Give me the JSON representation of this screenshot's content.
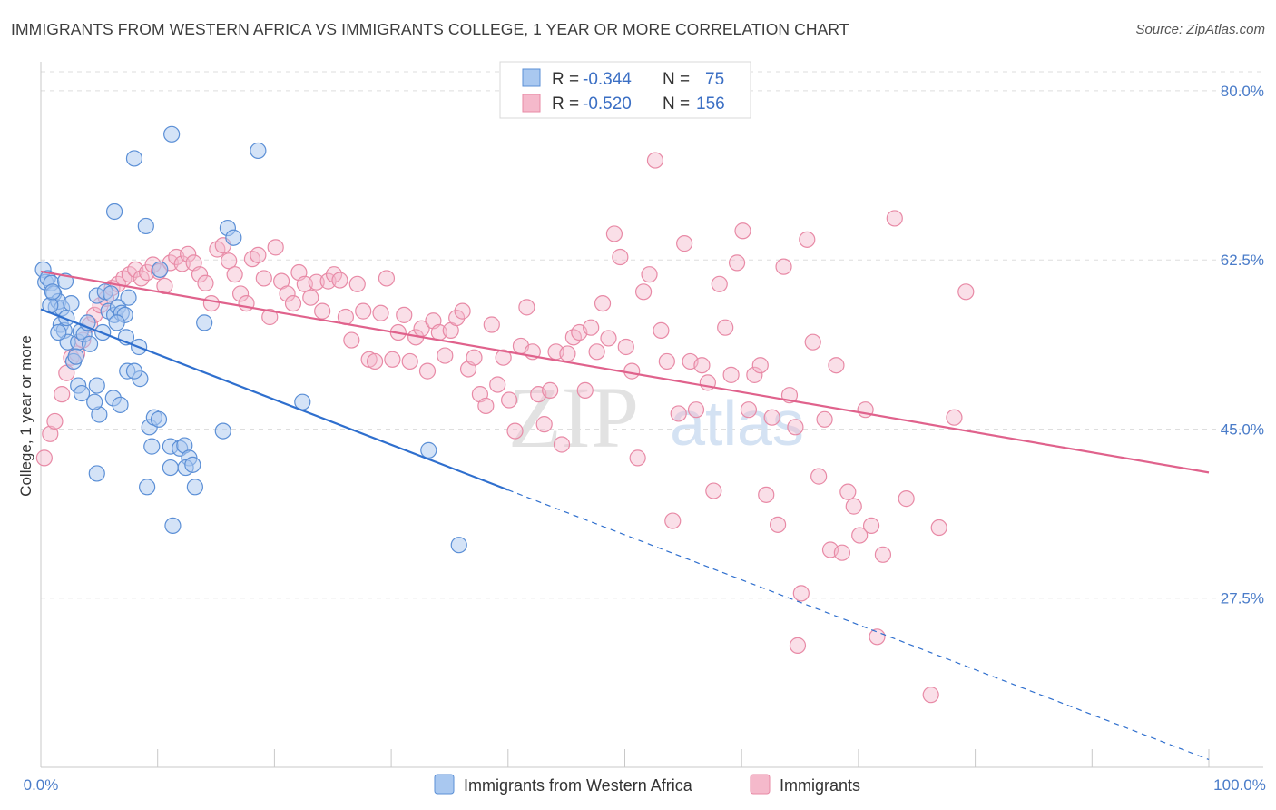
{
  "title": "IMMIGRANTS FROM WESTERN AFRICA VS IMMIGRANTS COLLEGE, 1 YEAR OR MORE CORRELATION CHART",
  "source": "Source: ZipAtlas.com",
  "watermark": {
    "zip": "ZIP",
    "atlas": "atlas"
  },
  "colors": {
    "blue_fill": "#a9c8f0",
    "blue_stroke": "#5b8fd6",
    "blue_line": "#2f6fce",
    "pink_fill": "#f5b9cb",
    "pink_stroke": "#e88aa6",
    "pink_line": "#e0628c",
    "tick_label": "#4a7cc9",
    "grid": "#dedede"
  },
  "legend": {
    "r_label": "R =",
    "n_label": "N =",
    "rows": [
      {
        "r": "-0.344",
        "n": "75"
      },
      {
        "r": "-0.520",
        "n": "156"
      }
    ]
  },
  "chart_data": {
    "type": "scatter",
    "title": "IMMIGRANTS FROM WESTERN AFRICA VS IMMIGRANTS COLLEGE, 1 YEAR OR MORE CORRELATION CHART",
    "xlabel": "",
    "ylabel": "College, 1 year or more",
    "xlim": [
      0,
      100
    ],
    "ylim": [
      10,
      83
    ],
    "x_tick_labels": [
      "0.0%",
      "100.0%"
    ],
    "y_ticks": [
      27.5,
      45.0,
      62.5,
      80.0
    ],
    "y_tick_labels": [
      "27.5%",
      "45.0%",
      "62.5%",
      "80.0%"
    ],
    "grid": true,
    "legend_position": "top-center",
    "series": [
      {
        "name": "Immigrants from Western Africa",
        "color": "#a9c8f0",
        "trend": {
          "x": [
            0,
            40
          ],
          "y": [
            57.4,
            38.7
          ],
          "dashed_to": [
            100,
            10.8
          ]
        },
        "points": [
          [
            0.2,
            61.5
          ],
          [
            0.4,
            60.2
          ],
          [
            0.6,
            60.6
          ],
          [
            0.9,
            60.1
          ],
          [
            1.1,
            59.0
          ],
          [
            1.3,
            57.6
          ],
          [
            1.5,
            58.2
          ],
          [
            1.8,
            57.5
          ],
          [
            2.1,
            60.3
          ],
          [
            0.8,
            57.8
          ],
          [
            1.0,
            59.2
          ],
          [
            1.7,
            55.8
          ],
          [
            2.0,
            55.2
          ],
          [
            2.3,
            54.0
          ],
          [
            2.8,
            52.0
          ],
          [
            3.2,
            54.0
          ],
          [
            3.4,
            55.1
          ],
          [
            3.7,
            54.8
          ],
          [
            4.0,
            56.0
          ],
          [
            4.2,
            53.8
          ],
          [
            4.8,
            58.8
          ],
          [
            5.5,
            59.2
          ],
          [
            5.8,
            57.2
          ],
          [
            6.0,
            59.0
          ],
          [
            6.3,
            56.8
          ],
          [
            6.6,
            57.6
          ],
          [
            6.9,
            57.0
          ],
          [
            7.2,
            56.8
          ],
          [
            7.5,
            58.6
          ],
          [
            7.3,
            54.5
          ],
          [
            8.4,
            53.5
          ],
          [
            8.0,
            73.0
          ],
          [
            9.0,
            66.0
          ],
          [
            11.2,
            75.5
          ],
          [
            6.3,
            67.5
          ],
          [
            14.0,
            56.0
          ],
          [
            16.0,
            65.8
          ],
          [
            16.5,
            64.8
          ],
          [
            18.6,
            73.8
          ],
          [
            10.2,
            61.5
          ],
          [
            3.2,
            49.5
          ],
          [
            3.5,
            48.7
          ],
          [
            4.8,
            49.5
          ],
          [
            5.0,
            46.5
          ],
          [
            6.2,
            48.2
          ],
          [
            6.8,
            47.5
          ],
          [
            4.6,
            47.8
          ],
          [
            7.4,
            51.0
          ],
          [
            8.5,
            50.2
          ],
          [
            9.3,
            45.2
          ],
          [
            9.7,
            46.2
          ],
          [
            10.1,
            46.0
          ],
          [
            9.5,
            43.2
          ],
          [
            11.1,
            43.2
          ],
          [
            11.9,
            43.0
          ],
          [
            12.3,
            43.3
          ],
          [
            12.7,
            42.0
          ],
          [
            11.1,
            41.0
          ],
          [
            12.4,
            41.0
          ],
          [
            13.0,
            41.3
          ],
          [
            4.8,
            40.4
          ],
          [
            9.1,
            39.0
          ],
          [
            13.2,
            39.0
          ],
          [
            11.3,
            35.0
          ],
          [
            15.6,
            44.8
          ],
          [
            22.4,
            47.8
          ],
          [
            33.2,
            42.8
          ],
          [
            35.8,
            33.0
          ],
          [
            1.5,
            55.0
          ],
          [
            2.2,
            56.5
          ],
          [
            2.6,
            58.0
          ],
          [
            3.0,
            52.5
          ],
          [
            5.3,
            55.0
          ],
          [
            6.5,
            56.0
          ],
          [
            8.0,
            51.0
          ]
        ]
      },
      {
        "name": "Immigrants",
        "color": "#f5b9cb",
        "trend": {
          "x": [
            0,
            100
          ],
          "y": [
            61.3,
            40.5
          ]
        },
        "points": [
          [
            0.3,
            42.0
          ],
          [
            0.8,
            44.5
          ],
          [
            1.2,
            45.8
          ],
          [
            1.8,
            48.6
          ],
          [
            2.2,
            50.8
          ],
          [
            2.6,
            52.4
          ],
          [
            3.1,
            52.8
          ],
          [
            3.6,
            54.2
          ],
          [
            4.2,
            55.8
          ],
          [
            4.6,
            56.8
          ],
          [
            5.1,
            57.8
          ],
          [
            5.6,
            58.5
          ],
          [
            6.1,
            59.6
          ],
          [
            6.6,
            60.0
          ],
          [
            7.1,
            60.6
          ],
          [
            7.6,
            61.0
          ],
          [
            8.1,
            61.5
          ],
          [
            8.6,
            60.6
          ],
          [
            9.1,
            61.2
          ],
          [
            9.6,
            62.0
          ],
          [
            10.1,
            61.3
          ],
          [
            10.6,
            59.8
          ],
          [
            11.1,
            62.2
          ],
          [
            11.6,
            62.8
          ],
          [
            12.1,
            62.1
          ],
          [
            12.6,
            63.1
          ],
          [
            13.1,
            62.2
          ],
          [
            13.6,
            61.0
          ],
          [
            14.1,
            60.1
          ],
          [
            14.6,
            58.0
          ],
          [
            15.1,
            63.6
          ],
          [
            15.6,
            64.0
          ],
          [
            16.1,
            62.4
          ],
          [
            16.6,
            61.0
          ],
          [
            17.1,
            59.0
          ],
          [
            17.6,
            58.0
          ],
          [
            18.1,
            62.6
          ],
          [
            18.6,
            63.0
          ],
          [
            19.1,
            60.6
          ],
          [
            19.6,
            56.6
          ],
          [
            20.1,
            63.8
          ],
          [
            20.6,
            60.3
          ],
          [
            21.1,
            59.0
          ],
          [
            21.6,
            58.0
          ],
          [
            22.1,
            61.2
          ],
          [
            22.6,
            60.0
          ],
          [
            23.1,
            58.6
          ],
          [
            23.6,
            60.2
          ],
          [
            24.1,
            57.2
          ],
          [
            24.6,
            60.3
          ],
          [
            25.1,
            61.0
          ],
          [
            25.6,
            60.4
          ],
          [
            26.1,
            56.6
          ],
          [
            26.6,
            54.2
          ],
          [
            27.1,
            60.0
          ],
          [
            27.6,
            57.2
          ],
          [
            28.1,
            52.2
          ],
          [
            28.6,
            52.0
          ],
          [
            29.1,
            57.0
          ],
          [
            29.6,
            60.6
          ],
          [
            30.1,
            52.2
          ],
          [
            30.6,
            55.0
          ],
          [
            31.1,
            56.8
          ],
          [
            31.6,
            52.0
          ],
          [
            32.1,
            54.5
          ],
          [
            32.6,
            55.4
          ],
          [
            33.1,
            51.0
          ],
          [
            33.6,
            56.2
          ],
          [
            34.1,
            55.0
          ],
          [
            34.6,
            52.6
          ],
          [
            35.1,
            55.2
          ],
          [
            35.6,
            56.5
          ],
          [
            36.1,
            57.2
          ],
          [
            36.6,
            51.2
          ],
          [
            37.1,
            52.4
          ],
          [
            37.6,
            48.6
          ],
          [
            38.1,
            47.4
          ],
          [
            38.6,
            55.8
          ],
          [
            39.1,
            49.6
          ],
          [
            39.6,
            52.4
          ],
          [
            40.1,
            48.0
          ],
          [
            40.6,
            44.8
          ],
          [
            41.1,
            53.6
          ],
          [
            41.6,
            57.6
          ],
          [
            42.1,
            53.0
          ],
          [
            42.6,
            48.6
          ],
          [
            43.1,
            45.5
          ],
          [
            43.6,
            49.0
          ],
          [
            44.1,
            53.0
          ],
          [
            44.6,
            43.4
          ],
          [
            45.1,
            52.8
          ],
          [
            45.6,
            54.5
          ],
          [
            46.1,
            55.0
          ],
          [
            46.6,
            49.0
          ],
          [
            47.1,
            55.5
          ],
          [
            47.6,
            53.0
          ],
          [
            48.1,
            58.0
          ],
          [
            48.6,
            54.4
          ],
          [
            49.1,
            65.2
          ],
          [
            49.6,
            62.8
          ],
          [
            50.1,
            53.5
          ],
          [
            50.6,
            51.0
          ],
          [
            51.1,
            42.0
          ],
          [
            51.6,
            59.2
          ],
          [
            52.1,
            61.0
          ],
          [
            52.6,
            72.8
          ],
          [
            53.1,
            55.2
          ],
          [
            53.6,
            52.0
          ],
          [
            54.1,
            35.5
          ],
          [
            54.6,
            46.6
          ],
          [
            55.1,
            64.2
          ],
          [
            55.6,
            52.0
          ],
          [
            56.1,
            47.0
          ],
          [
            56.6,
            51.6
          ],
          [
            57.1,
            49.8
          ],
          [
            57.6,
            38.6
          ],
          [
            58.1,
            60.0
          ],
          [
            58.6,
            55.5
          ],
          [
            59.1,
            50.6
          ],
          [
            59.6,
            62.2
          ],
          [
            60.1,
            65.5
          ],
          [
            60.6,
            47.0
          ],
          [
            61.1,
            50.6
          ],
          [
            61.6,
            51.6
          ],
          [
            62.1,
            38.2
          ],
          [
            62.6,
            46.2
          ],
          [
            63.1,
            35.1
          ],
          [
            63.6,
            61.8
          ],
          [
            64.1,
            48.5
          ],
          [
            64.6,
            45.2
          ],
          [
            65.1,
            28.0
          ],
          [
            65.6,
            64.6
          ],
          [
            66.1,
            54.0
          ],
          [
            66.6,
            40.1
          ],
          [
            67.1,
            46.0
          ],
          [
            67.6,
            32.5
          ],
          [
            68.1,
            51.6
          ],
          [
            68.6,
            32.2
          ],
          [
            69.1,
            38.5
          ],
          [
            69.6,
            37.0
          ],
          [
            70.1,
            34.0
          ],
          [
            70.6,
            47.0
          ],
          [
            71.1,
            35.0
          ],
          [
            71.6,
            23.5
          ],
          [
            72.1,
            32.0
          ],
          [
            73.1,
            66.8
          ],
          [
            74.1,
            37.8
          ],
          [
            76.2,
            17.5
          ],
          [
            76.9,
            34.8
          ],
          [
            78.2,
            46.2
          ],
          [
            79.2,
            59.2
          ],
          [
            64.8,
            22.6
          ]
        ]
      }
    ]
  },
  "bottom_legend": [
    {
      "label": "Immigrants from Western Africa"
    },
    {
      "label": "Immigrants"
    }
  ]
}
